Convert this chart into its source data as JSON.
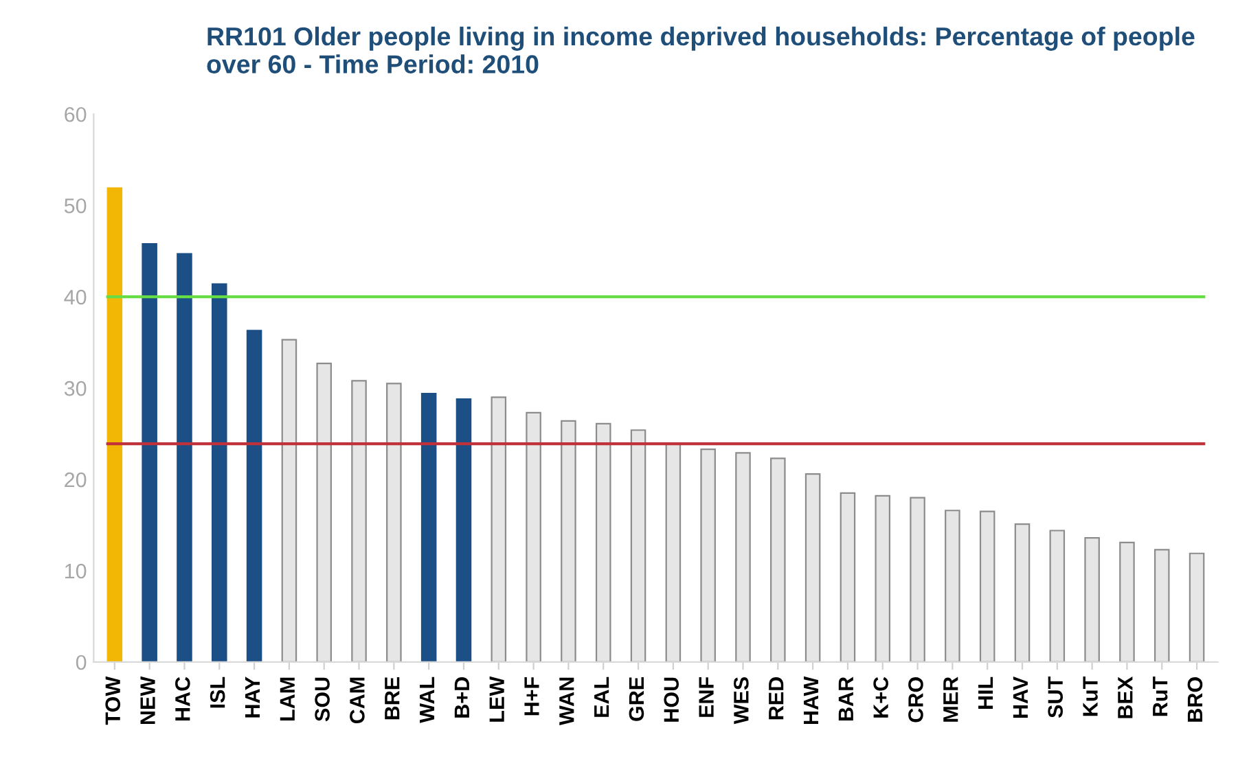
{
  "chart_data": {
    "type": "bar",
    "title": "RR101 Older people living in income deprived households: Percentage of people over 60 - Time Period: 2010",
    "categories": [
      "TOW",
      "NEW",
      "HAC",
      "ISL",
      "HAY",
      "LAM",
      "SOU",
      "CAM",
      "BRE",
      "WAL",
      "B+D",
      "LEW",
      "H+F",
      "WAN",
      "EAL",
      "GRE",
      "HOU",
      "ENF",
      "WES",
      "RED",
      "HAW",
      "BAR",
      "K+C",
      "CRO",
      "MER",
      "HIL",
      "HAV",
      "SUT",
      "KuT",
      "BEX",
      "RuT",
      "BRO"
    ],
    "values": [
      51.9,
      45.8,
      44.7,
      41.4,
      36.3,
      35.3,
      32.7,
      30.8,
      30.5,
      29.4,
      28.8,
      29.0,
      27.3,
      26.4,
      26.1,
      25.4,
      23.9,
      23.3,
      22.9,
      22.3,
      20.6,
      18.5,
      18.2,
      18.0,
      16.6,
      16.5,
      15.1,
      14.4,
      13.6,
      13.1,
      12.3,
      11.9
    ],
    "colors": [
      "#f2b705",
      "#1b4f86",
      "#1b4f86",
      "#1b4f86",
      "#1b4f86",
      "#e6e6e6",
      "#e6e6e6",
      "#e6e6e6",
      "#e6e6e6",
      "#1b4f86",
      "#1b4f86",
      "#e6e6e6",
      "#e6e6e6",
      "#e6e6e6",
      "#e6e6e6",
      "#e6e6e6",
      "#e6e6e6",
      "#e6e6e6",
      "#e6e6e6",
      "#e6e6e6",
      "#e6e6e6",
      "#e6e6e6",
      "#e6e6e6",
      "#e6e6e6",
      "#e6e6e6",
      "#e6e6e6",
      "#e6e6e6",
      "#e6e6e6",
      "#e6e6e6",
      "#e6e6e6",
      "#e6e6e6",
      "#e6e6e6"
    ],
    "ylim": [
      0,
      60
    ],
    "yticks": [
      0,
      10,
      20,
      30,
      40,
      50,
      60
    ],
    "grid": false,
    "legend": false,
    "ref_lines": [
      {
        "axis": "y",
        "value": 40,
        "color": "#66dd44"
      },
      {
        "axis": "y",
        "value": 23.9,
        "color": "#c0313a"
      }
    ]
  }
}
